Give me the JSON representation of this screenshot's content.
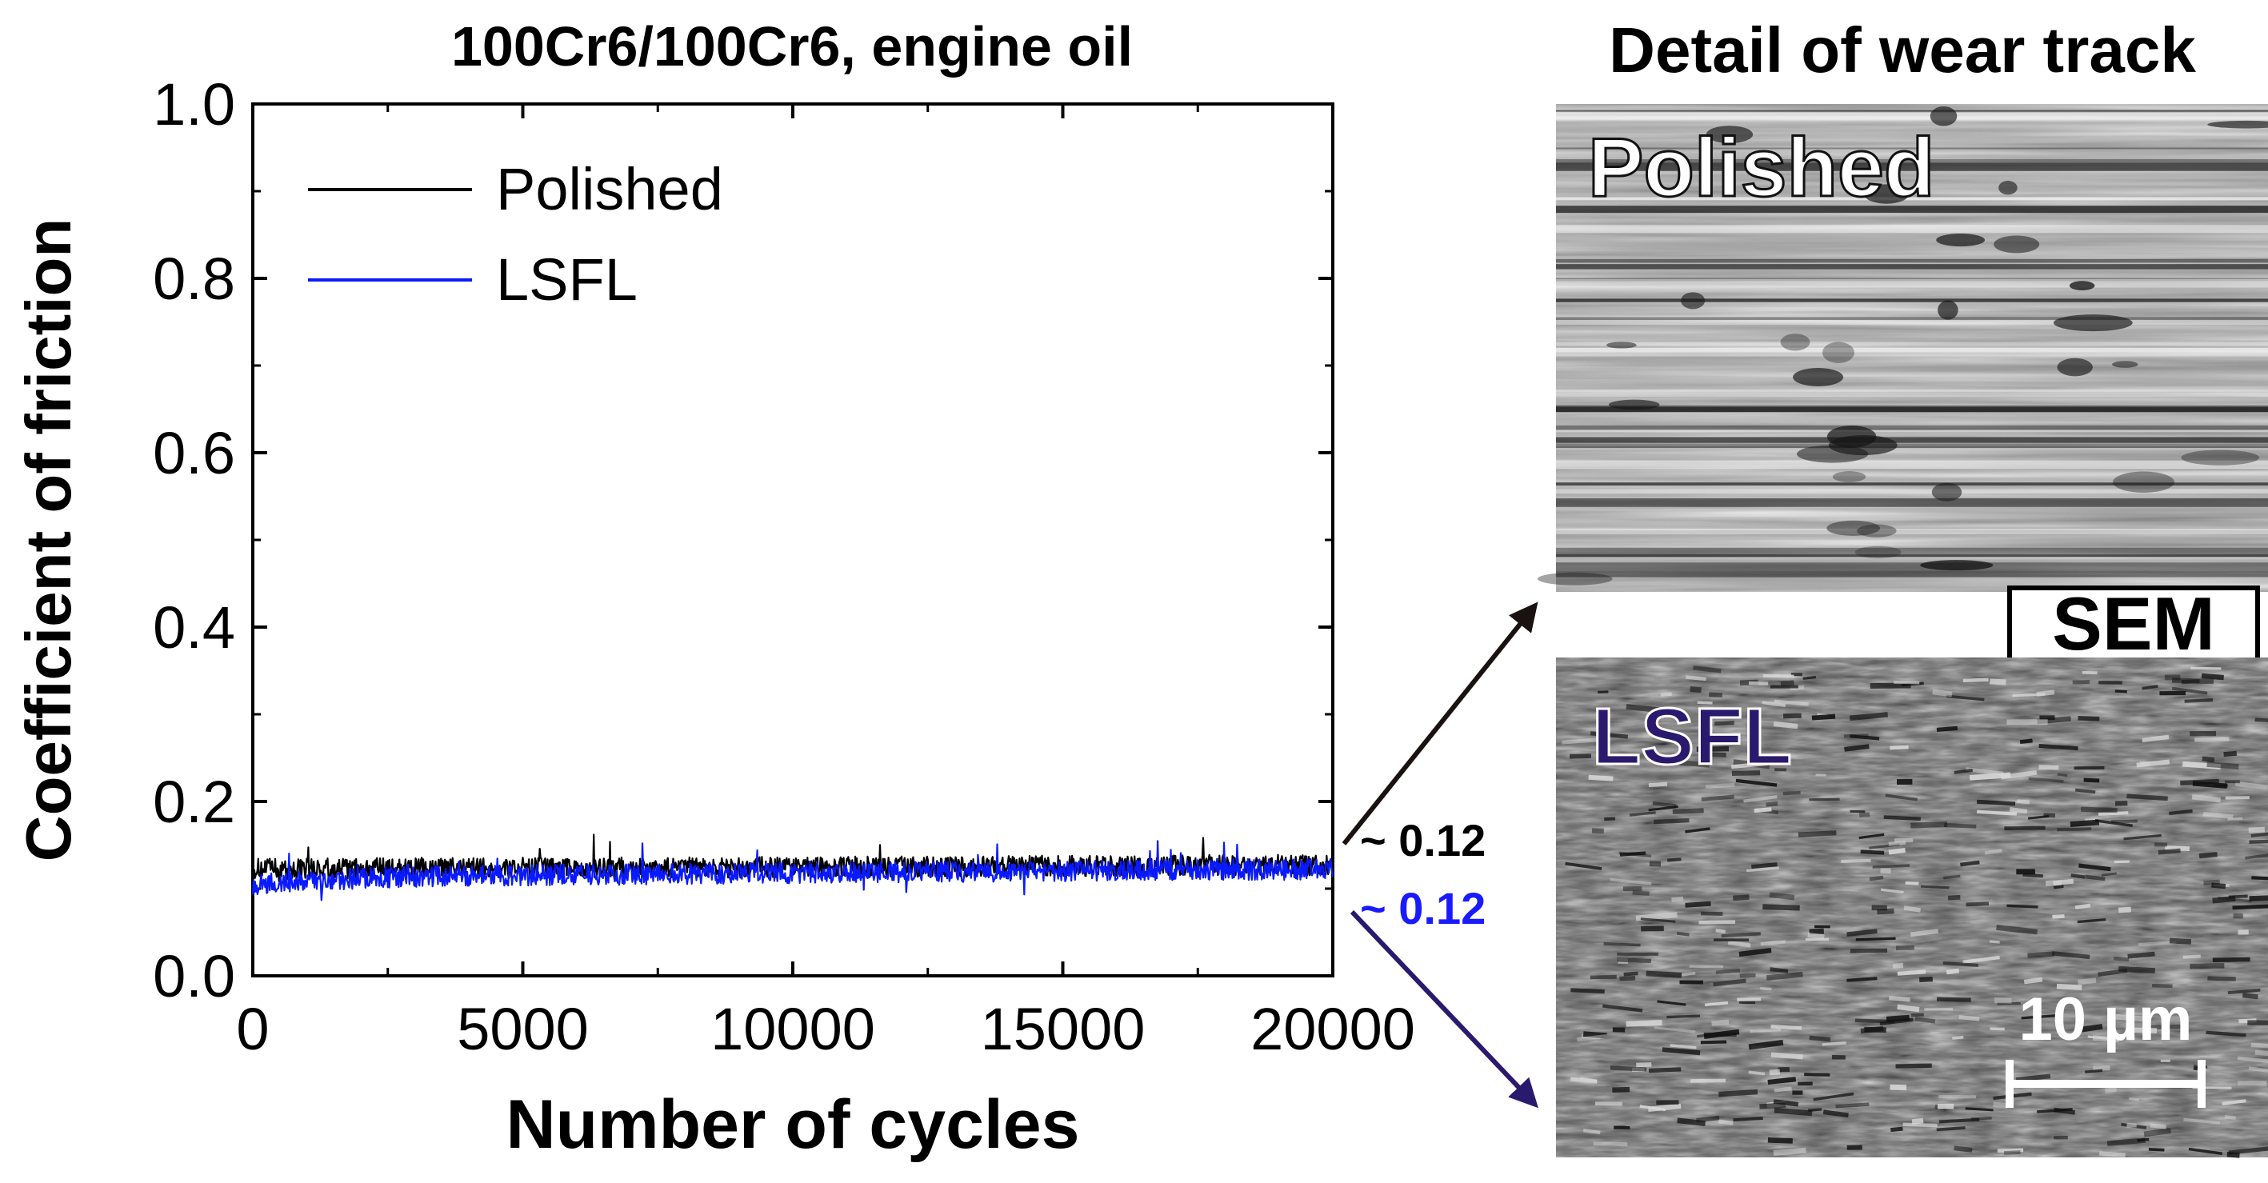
{
  "chart_data": {
    "type": "line",
    "title": "100Cr6/100Cr6, engine oil",
    "xlabel": "Number of cycles",
    "ylabel": "Coefficient of friction",
    "xlim": [
      0,
      20000
    ],
    "ylim": [
      0,
      1.0
    ],
    "xticks": [
      0,
      5000,
      10000,
      15000,
      20000
    ],
    "yticks": [
      0.0,
      0.2,
      0.4,
      0.6,
      0.8,
      1.0
    ],
    "x_tick_labels": [
      "0",
      "5000",
      "10000",
      "15000",
      "20000"
    ],
    "y_tick_labels": [
      "0.0",
      "0.2",
      "0.4",
      "0.6",
      "0.8",
      "1.0"
    ],
    "legend_position": "top-left",
    "grid": false,
    "series": [
      {
        "name": "Polished",
        "color": "#000000",
        "mean": 0.125,
        "noise": 0.012,
        "x": [
          0,
          2000,
          4000,
          6000,
          8000,
          10000,
          12000,
          14000,
          16000,
          18000,
          20000
        ],
        "values": [
          0.123,
          0.123,
          0.124,
          0.124,
          0.124,
          0.125,
          0.125,
          0.126,
          0.126,
          0.127,
          0.127
        ],
        "annotation": "~ 0.12"
      },
      {
        "name": "LSFL",
        "color": "#0a1aff",
        "mean": 0.118,
        "noise": 0.012,
        "x": [
          0,
          2000,
          4000,
          6000,
          8000,
          10000,
          12000,
          14000,
          16000,
          18000,
          20000
        ],
        "values": [
          0.105,
          0.112,
          0.115,
          0.116,
          0.117,
          0.118,
          0.119,
          0.12,
          0.121,
          0.122,
          0.122
        ],
        "annotation": "~ 0.12"
      }
    ]
  },
  "panel": {
    "title": "Detail of wear track",
    "top_label": "Polished",
    "bottom_label": "LSFL",
    "badge": "SEM",
    "scale_label": "10 µm"
  },
  "colors": {
    "polished_arrow": "#1a1210",
    "lsfl_arrow": "#2a1a6e",
    "lsfl_text": "#1a1aff"
  }
}
